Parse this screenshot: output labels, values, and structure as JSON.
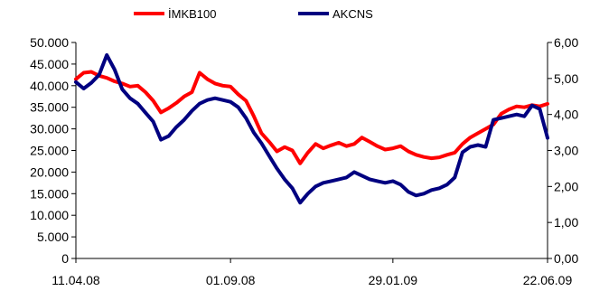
{
  "chart_data": {
    "type": "line",
    "x": [
      "11.04.08",
      "18.04.08",
      "25.04.08",
      "02.05.08",
      "09.05.08",
      "16.05.08",
      "23.05.08",
      "30.05.08",
      "06.06.08",
      "13.06.08",
      "20.06.08",
      "27.06.08",
      "04.07.08",
      "11.07.08",
      "18.07.08",
      "25.07.08",
      "01.08.08",
      "08.08.08",
      "15.08.08",
      "22.08.08",
      "01.09.08",
      "08.09.08",
      "15.09.08",
      "22.09.08",
      "29.09.08",
      "06.10.08",
      "13.10.08",
      "20.10.08",
      "27.10.08",
      "03.11.08",
      "10.11.08",
      "17.11.08",
      "24.11.08",
      "01.12.08",
      "08.12.08",
      "15.12.08",
      "22.12.08",
      "29.12.08",
      "05.01.09",
      "12.01.09",
      "19.01.09",
      "29.01.09",
      "05.02.09",
      "12.02.09",
      "19.02.09",
      "26.02.09",
      "05.03.09",
      "12.03.09",
      "19.03.09",
      "26.03.09",
      "02.04.09",
      "09.04.09",
      "16.04.09",
      "23.04.09",
      "30.04.09",
      "07.05.09",
      "14.05.09",
      "21.05.09",
      "28.05.09",
      "04.06.09",
      "11.06.09",
      "22.06.09"
    ],
    "x_ticks": [
      "11.04.08",
      "01.09.08",
      "29.01.09",
      "22.06.09"
    ],
    "series": [
      {
        "name": "İMKB100",
        "axis": "left",
        "color": "#ff0000",
        "values": [
          41500,
          43000,
          43200,
          42300,
          41800,
          41000,
          40500,
          39800,
          40000,
          38500,
          36500,
          33800,
          34800,
          36000,
          37500,
          38500,
          43000,
          41500,
          40500,
          40000,
          39800,
          38000,
          36500,
          33000,
          29000,
          27000,
          24800,
          25800,
          25000,
          22000,
          24500,
          26500,
          25500,
          26200,
          26800,
          26000,
          26500,
          28000,
          27000,
          26000,
          25200,
          25500,
          26000,
          24800,
          24000,
          23500,
          23200,
          23400,
          24000,
          24500,
          26500,
          28000,
          29000,
          30000,
          31000,
          33500,
          34500,
          35200,
          35000,
          35500,
          35200,
          35800
        ]
      },
      {
        "name": "AKCNS",
        "axis": "right",
        "color": "#000080",
        "values": [
          4.9,
          4.72,
          4.88,
          5.1,
          5.65,
          5.25,
          4.7,
          4.45,
          4.3,
          4.05,
          3.8,
          3.3,
          3.4,
          3.65,
          3.85,
          4.1,
          4.3,
          4.4,
          4.45,
          4.4,
          4.35,
          4.2,
          3.9,
          3.5,
          3.2,
          2.85,
          2.5,
          2.2,
          1.95,
          1.55,
          1.8,
          2.0,
          2.1,
          2.15,
          2.2,
          2.25,
          2.4,
          2.3,
          2.2,
          2.15,
          2.1,
          2.15,
          2.05,
          1.85,
          1.75,
          1.8,
          1.9,
          1.95,
          2.05,
          2.25,
          2.95,
          3.1,
          3.15,
          3.1,
          3.85,
          3.9,
          3.95,
          4.0,
          3.95,
          4.25,
          4.15,
          3.35
        ]
      }
    ],
    "y_left": {
      "ticks": [
        "0",
        "5.000",
        "10.000",
        "15.000",
        "20.000",
        "25.000",
        "30.000",
        "35.000",
        "40.000",
        "45.000",
        "50.000"
      ],
      "ylim": [
        0,
        50000
      ]
    },
    "y_right": {
      "ticks": [
        "0,00",
        "1,00",
        "2,00",
        "3,00",
        "4,00",
        "5,00",
        "6,00"
      ],
      "ylim": [
        0,
        6
      ]
    },
    "legend": {
      "placement": "top-center"
    },
    "grid": false
  }
}
